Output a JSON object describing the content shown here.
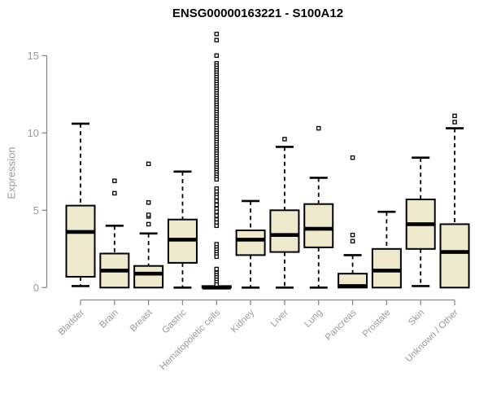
{
  "chart_data": {
    "type": "boxplot",
    "title": "ENSG00000163221 - S100A12",
    "gene_id": "ENSG00000163221",
    "gene_symbol": "S100A12",
    "ylabel": "Expression",
    "xlabel": "",
    "ylim": [
      0,
      16.5
    ],
    "yticks": [
      0,
      5,
      10,
      15
    ],
    "grid": false,
    "legend": "none",
    "colors": {
      "box_fill": "#EEE8CD",
      "box_stroke": "#000000",
      "median": "#000000",
      "whisker": "#000000",
      "outlier_stroke": "#000000",
      "axis": "#8a8a8a",
      "tick_label": "#9a9a9a",
      "title": "#000000"
    },
    "categories": [
      "Bladder",
      "Brain",
      "Breast",
      "Gastric",
      "Hematopoietic cells",
      "Kidney",
      "Liver",
      "Lung",
      "Pancreas",
      "Prostate",
      "Skin",
      "Unknown / Other"
    ],
    "boxes": [
      {
        "category": "Bladder",
        "whisker_low": 0.1,
        "q1": 0.7,
        "median": 3.6,
        "q3": 5.3,
        "whisker_high": 10.6,
        "outliers": []
      },
      {
        "category": "Brain",
        "whisker_low": 0.0,
        "q1": 0.0,
        "median": 1.1,
        "q3": 2.2,
        "whisker_high": 4.0,
        "outliers": [
          6.1,
          6.9
        ]
      },
      {
        "category": "Breast",
        "whisker_low": 0.0,
        "q1": 0.0,
        "median": 0.9,
        "q3": 1.4,
        "whisker_high": 3.5,
        "outliers": [
          4.1,
          4.6,
          4.7,
          5.5,
          8.0
        ]
      },
      {
        "category": "Gastric",
        "whisker_low": 0.0,
        "q1": 1.6,
        "median": 3.1,
        "q3": 4.4,
        "whisker_high": 7.5,
        "outliers": []
      },
      {
        "category": "Hematopoietic cells",
        "whisker_low": 0.0,
        "q1": 0.0,
        "median": 0.0,
        "q3": 0.1,
        "whisker_high": 0.1,
        "outliers": [
          16.4,
          16.0,
          15.0,
          14.5,
          14.35,
          14.2,
          14.05,
          13.9,
          13.75,
          13.6,
          13.45,
          13.3,
          13.15,
          13.0,
          12.85,
          12.7,
          12.55,
          12.4,
          12.25,
          12.1,
          11.95,
          11.8,
          11.65,
          11.5,
          11.35,
          11.2,
          11.05,
          10.9,
          10.75,
          10.6,
          10.45,
          10.3,
          10.15,
          10.0,
          9.85,
          9.7,
          9.55,
          9.4,
          9.25,
          9.1,
          8.95,
          8.8,
          8.65,
          8.5,
          8.35,
          8.2,
          8.05,
          7.9,
          7.75,
          7.6,
          7.45,
          7.3,
          7.15,
          7.0,
          6.4,
          6.2,
          6.0,
          5.85,
          5.6,
          5.35,
          5.1,
          4.9,
          4.65,
          4.4,
          4.2,
          4.0,
          2.8,
          2.6,
          2.45,
          2.3,
          2.15,
          2.0,
          1.2,
          0.95,
          0.8,
          0.65,
          0.5,
          0.35,
          0.2
        ]
      },
      {
        "category": "Kidney",
        "whisker_low": 0.0,
        "q1": 2.1,
        "median": 3.1,
        "q3": 3.7,
        "whisker_high": 5.6,
        "outliers": []
      },
      {
        "category": "Liver",
        "whisker_low": 0.0,
        "q1": 2.3,
        "median": 3.4,
        "q3": 5.0,
        "whisker_high": 9.1,
        "outliers": [
          9.6
        ]
      },
      {
        "category": "Lung",
        "whisker_low": 0.0,
        "q1": 2.6,
        "median": 3.8,
        "q3": 5.4,
        "whisker_high": 7.1,
        "outliers": [
          10.3
        ]
      },
      {
        "category": "Pancreas",
        "whisker_low": 0.0,
        "q1": 0.0,
        "median": 0.1,
        "q3": 0.9,
        "whisker_high": 2.1,
        "outliers": [
          3.0,
          3.4,
          8.4
        ]
      },
      {
        "category": "Prostate",
        "whisker_low": 0.0,
        "q1": 0.0,
        "median": 1.1,
        "q3": 2.5,
        "whisker_high": 4.9,
        "outliers": []
      },
      {
        "category": "Skin",
        "whisker_low": 0.1,
        "q1": 2.5,
        "median": 4.1,
        "q3": 5.7,
        "whisker_high": 8.4,
        "outliers": []
      },
      {
        "category": "Unknown / Other",
        "whisker_low": 0.0,
        "q1": 0.0,
        "median": 2.3,
        "q3": 4.1,
        "whisker_high": 10.3,
        "outliers": [
          10.7,
          11.1
        ]
      }
    ]
  }
}
